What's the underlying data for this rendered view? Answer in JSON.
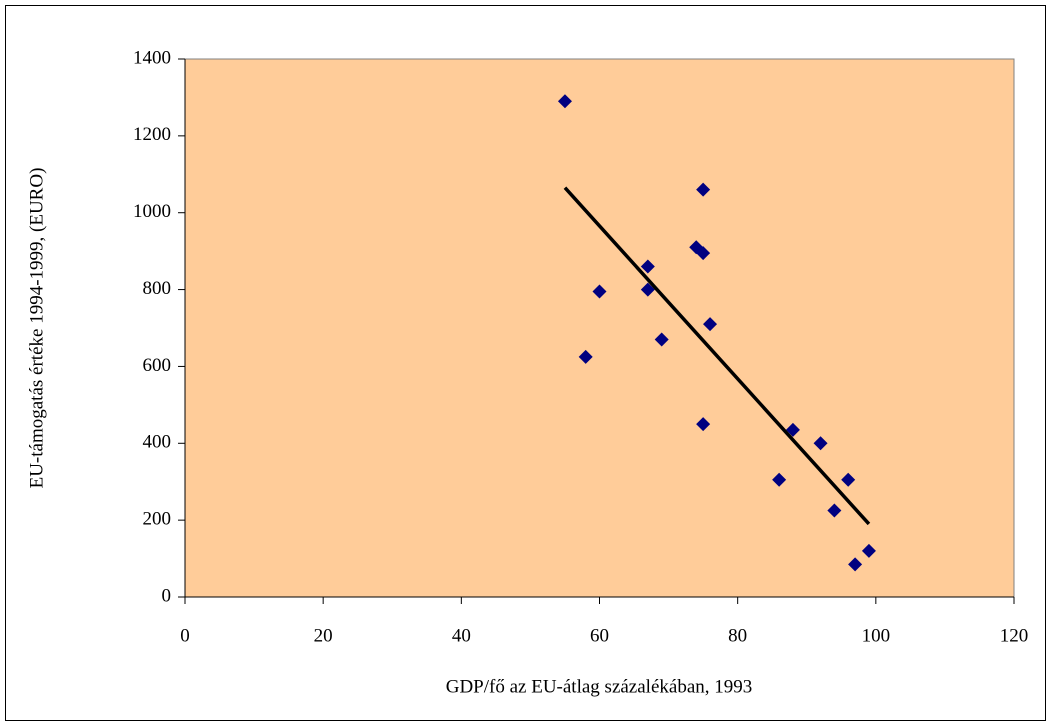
{
  "chart_data": {
    "type": "scatter",
    "xlabel": "GDP/fő az EU-átlag százalékában, 1993",
    "ylabel": "EU-támogatás értéke 1994-1999, (EURO)",
    "x": [
      55,
      58,
      60,
      67,
      67,
      69,
      74,
      75,
      75,
      76,
      75,
      86,
      88,
      92,
      96,
      94,
      97,
      99
    ],
    "values": [
      1290,
      625,
      795,
      860,
      800,
      670,
      910,
      895,
      1060,
      710,
      450,
      305,
      435,
      400,
      305,
      225,
      85,
      120
    ],
    "color": "#000080",
    "trendline": {
      "x": [
        55,
        99
      ],
      "values": [
        1065,
        190
      ],
      "color": "#000000"
    },
    "background": "#ffcc99",
    "xlim": [
      0,
      120
    ],
    "xticks": [
      0,
      20,
      40,
      60,
      80,
      100,
      120
    ],
    "ylim": [
      0,
      1400
    ],
    "yticks": [
      0,
      200,
      400,
      600,
      800,
      1000,
      1200,
      1400
    ]
  }
}
